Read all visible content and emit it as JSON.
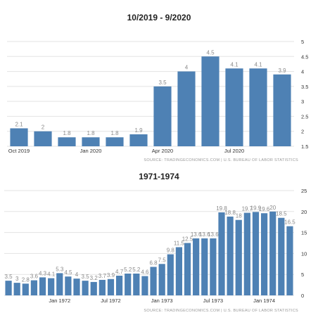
{
  "chart_data": [
    {
      "type": "bar",
      "title": "10/2019 - 9/2020",
      "categories": [
        "Oct 2019",
        "Nov 2019",
        "Dec 2019",
        "Jan 2020",
        "Feb 2020",
        "Mar 2020",
        "Apr 2020",
        "May 2020",
        "Jun 2020",
        "Jul 2020",
        "Aug 2020",
        "Sep 2020"
      ],
      "values": [
        2.1,
        2,
        1.8,
        1.8,
        1.8,
        1.9,
        3.5,
        4,
        4.5,
        4.1,
        4.1,
        3.9
      ],
      "value_labels": [
        "2.1",
        "2",
        "1.8",
        "1.8",
        "1.8",
        "1.9",
        "3.5",
        "4",
        "4.5",
        "4.1",
        "4.1",
        "3.9"
      ],
      "x_tick_labels": [
        {
          "index": 0,
          "label": "Oct 2019"
        },
        {
          "index": 3,
          "label": "Jan 2020"
        },
        {
          "index": 6,
          "label": "Apr 2020"
        },
        {
          "index": 9,
          "label": "Jul 2020"
        }
      ],
      "ylim": [
        1.5,
        5
      ],
      "y_ticks": [
        1.5,
        2,
        2.5,
        3,
        3.5,
        4,
        4.5,
        5
      ],
      "y_tick_labels": [
        "1.5",
        "2",
        "2.5",
        "3",
        "3.5",
        "4",
        "4.5",
        "5"
      ],
      "y_axis_position": "right",
      "grid": true,
      "bar_color": "#4e81b4",
      "source": "SOURCE: TRADINGECONOMICS.COM  |  U.S. BUREAU OF LABOR STATISTICS"
    },
    {
      "type": "bar",
      "title": "1971-1974",
      "categories": [
        "Jul 1971",
        "Aug 1971",
        "Sep 1971",
        "Oct 1971",
        "Nov 1971",
        "Dec 1971",
        "Jan 1972",
        "Feb 1972",
        "Mar 1972",
        "Apr 1972",
        "May 1972",
        "Jun 1972",
        "Jul 1972",
        "Aug 1972",
        "Sep 1972",
        "Oct 1972",
        "Nov 1972",
        "Dec 1972",
        "Jan 1973",
        "Feb 1973",
        "Mar 1973",
        "Apr 1973",
        "May 1973",
        "Jun 1973",
        "Jul 1973",
        "Aug 1973",
        "Sep 1973",
        "Oct 1973",
        "Nov 1973",
        "Dec 1973",
        "Jan 1974",
        "Feb 1974",
        "Mar 1974",
        "Apr 1974"
      ],
      "values": [
        3.5,
        3,
        2.8,
        3.6,
        4.3,
        4.1,
        5.3,
        4.5,
        4,
        3.5,
        3.2,
        3.7,
        3.9,
        4.7,
        5.2,
        5.2,
        4.6,
        6.8,
        7.5,
        9.8,
        11.5,
        12.5,
        13.6,
        13.6,
        13.6,
        19.8,
        18.8,
        18,
        19.7,
        19.9,
        19.6,
        20,
        18.5,
        16.5
      ],
      "value_labels": [
        "3.5",
        "3",
        "2.8",
        "3.6",
        "4.3",
        "4.1",
        "5.3",
        "4.5",
        "4",
        "3.5",
        "3.2",
        "3.7",
        "3.9",
        "4.7",
        "5.2",
        "5.2",
        "4.6",
        "6.8",
        "7.5",
        "9.8",
        "11.5",
        "12.5",
        "13.6",
        "13.6",
        "13.6",
        "19.8",
        "18.8",
        "18",
        "19.7",
        "19.9",
        "19.6",
        "20",
        "18.5",
        "16.5"
      ],
      "x_tick_labels": [
        {
          "index": 6,
          "label": "Jan 1972"
        },
        {
          "index": 12,
          "label": "Jul 1972"
        },
        {
          "index": 18,
          "label": "Jan 1973"
        },
        {
          "index": 24,
          "label": "Jul 1973"
        },
        {
          "index": 30,
          "label": "Jan 1974"
        }
      ],
      "ylim": [
        0,
        25
      ],
      "y_ticks": [
        0,
        5,
        10,
        15,
        20,
        25
      ],
      "y_tick_labels": [
        "0",
        "5",
        "10",
        "15",
        "20",
        "25"
      ],
      "y_axis_position": "right",
      "grid": true,
      "bar_color": "#4e81b4",
      "source": "SOURCE: TRADINGECONOMICS.COM  |  U.S. BUREAU OF LABOR STATISTICS"
    }
  ]
}
